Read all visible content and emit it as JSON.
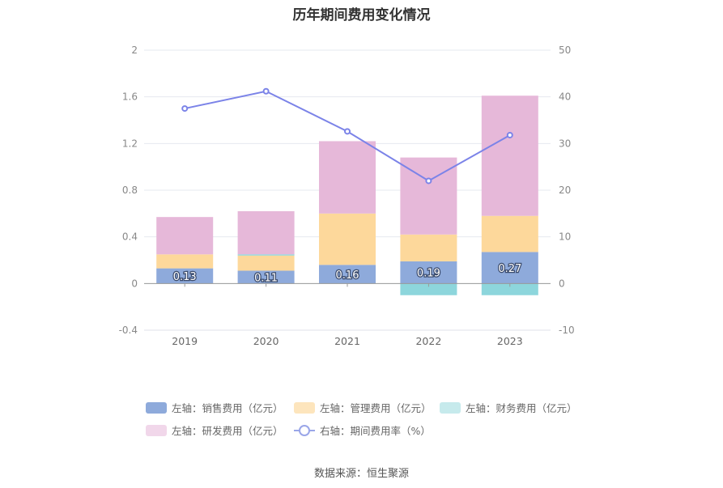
{
  "title": "历年期间费用变化情况",
  "source": "数据来源：恒生聚源",
  "chart_data": {
    "type": "bar",
    "stacked": true,
    "categories": [
      "2019",
      "2020",
      "2021",
      "2022",
      "2023"
    ],
    "left_axis": {
      "ticks": [
        "-0.4",
        "0",
        "0.4",
        "0.8",
        "1.2",
        "1.6",
        "2"
      ],
      "min": -0.4,
      "max": 2
    },
    "right_axis": {
      "ticks": [
        "-10",
        "0",
        "10",
        "20",
        "30",
        "40",
        "50"
      ],
      "min": -10,
      "max": 50
    },
    "grid": true,
    "legend_position": "bottom",
    "series": [
      {
        "name": "左轴：销售费用（亿元）",
        "color": "#8eaadb",
        "values": [
          0.13,
          0.11,
          0.16,
          0.19,
          0.27
        ],
        "labels": [
          "0.13",
          "0.11",
          "0.16",
          "0.19",
          "0.27"
        ]
      },
      {
        "name": "左轴：管理费用（亿元）",
        "color": "#fdd89b",
        "values": [
          0.12,
          0.13,
          0.44,
          0.23,
          0.31
        ]
      },
      {
        "name": "左轴：财务费用（亿元）",
        "color": "#8dd6dc",
        "values": [
          0.0,
          0.01,
          0.0,
          -0.1,
          -0.1
        ]
      },
      {
        "name": "左轴：研发费用（亿元）",
        "color": "#e6b8d9",
        "values": [
          0.32,
          0.37,
          0.62,
          0.66,
          1.03
        ]
      }
    ],
    "line_series": {
      "name": "右轴：期间费用率（%）",
      "color": "#7b83e8",
      "values": [
        37.5,
        41.2,
        32.6,
        22.0,
        31.8
      ]
    }
  }
}
